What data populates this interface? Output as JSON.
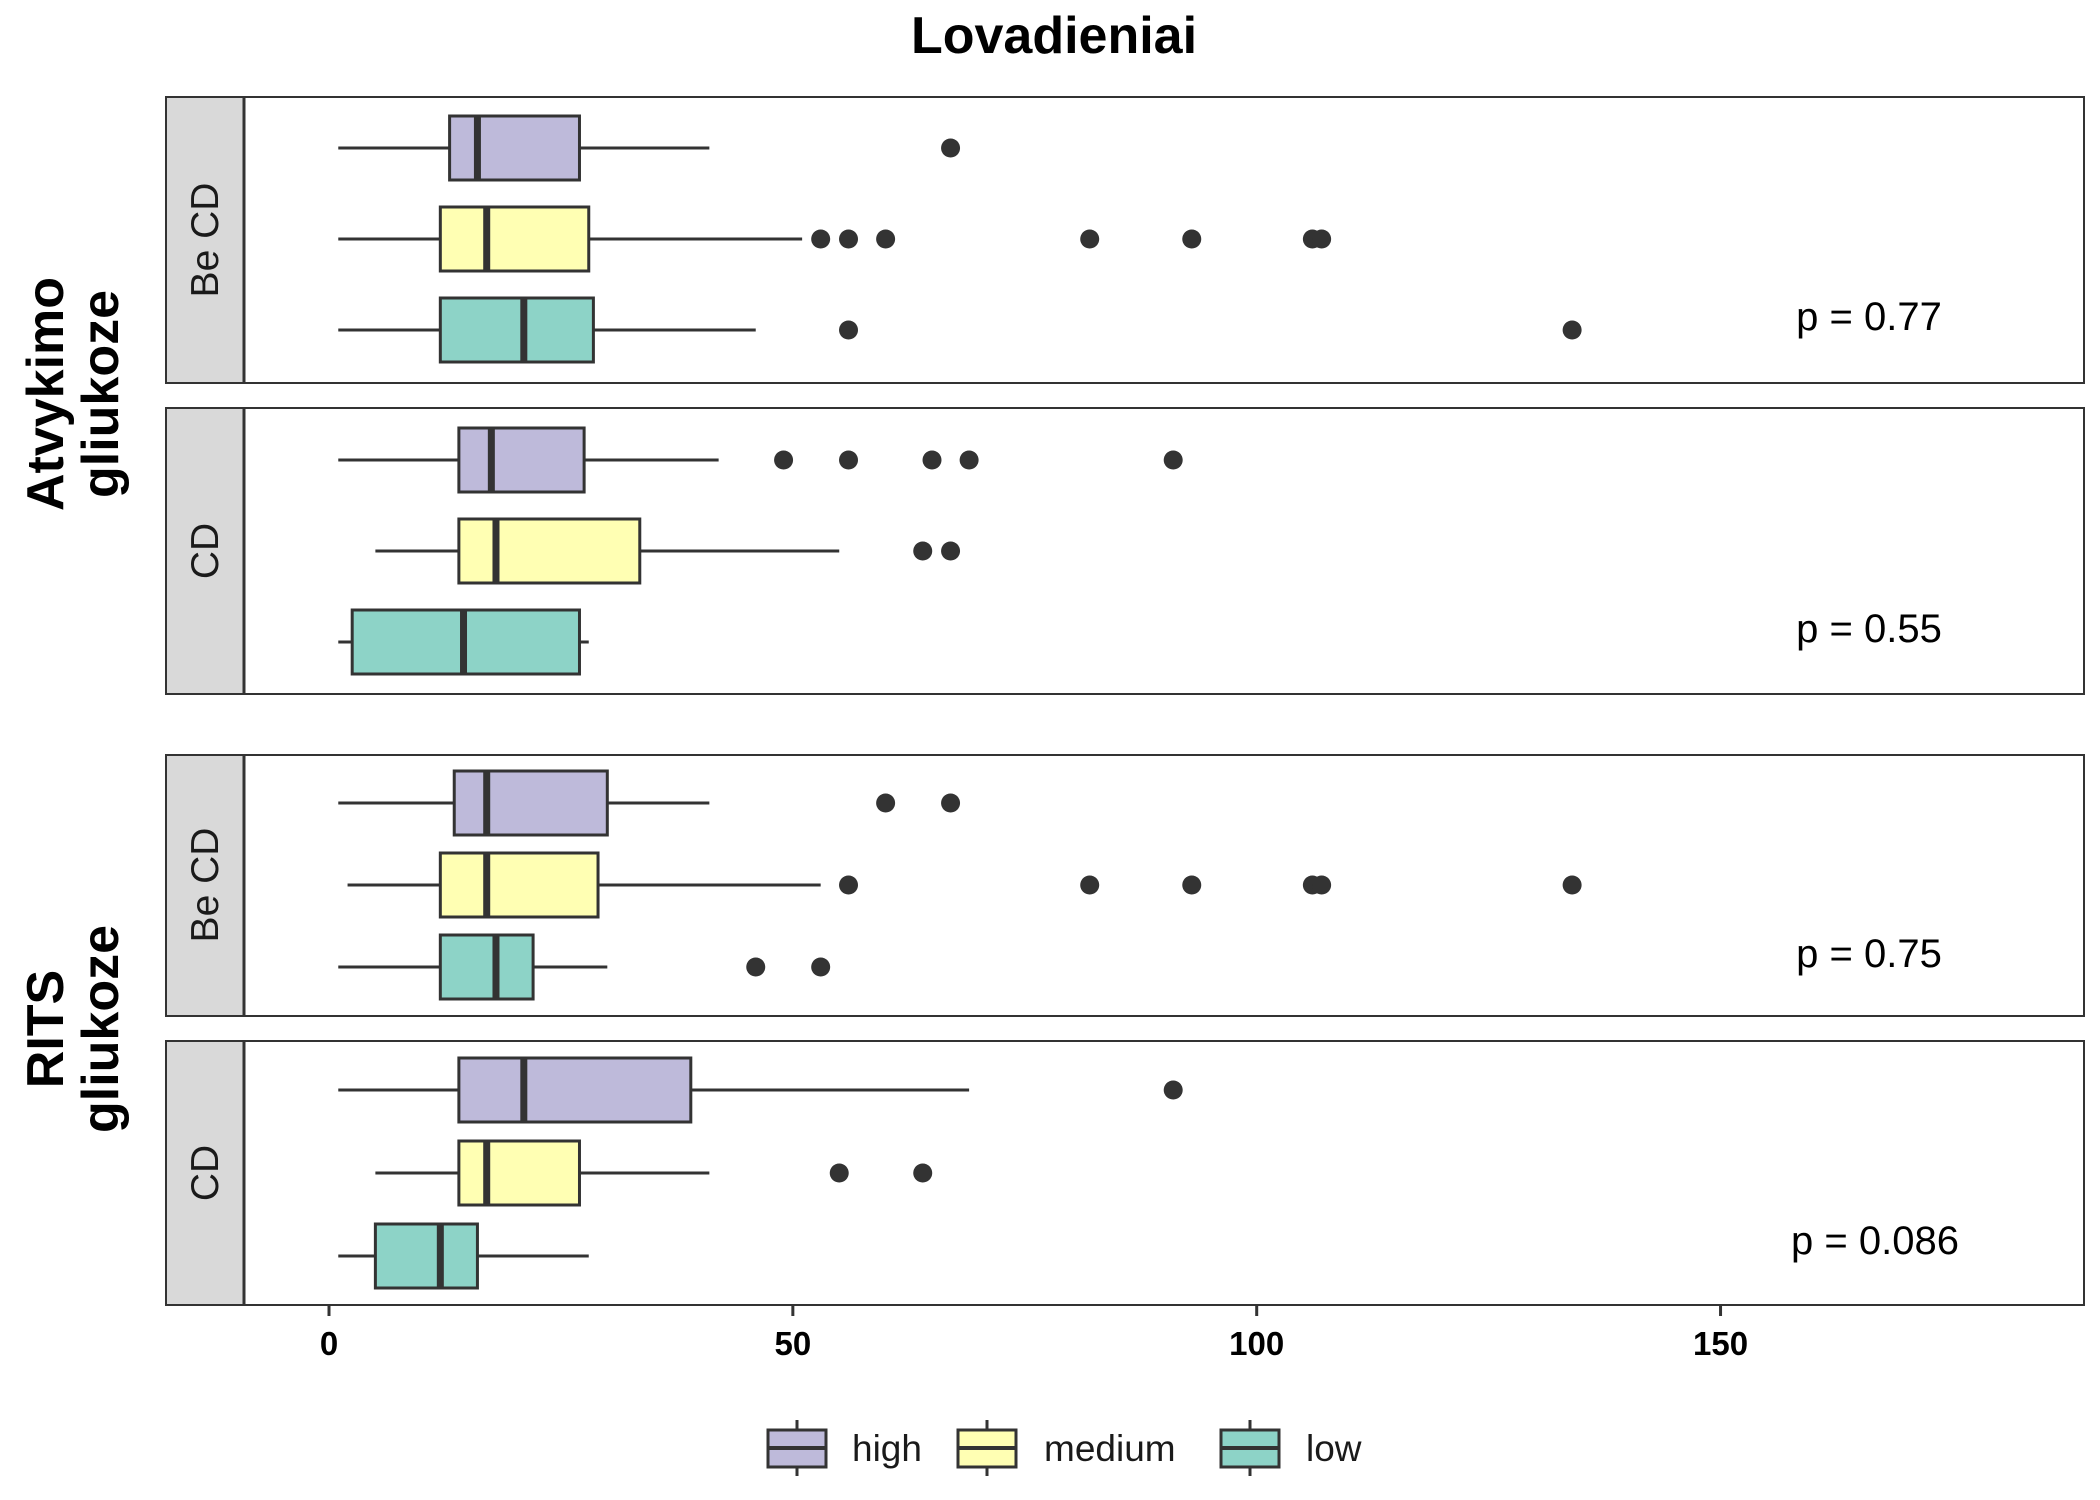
{
  "chart_data": {
    "type": "boxplot",
    "orientation": "horizontal",
    "title": "Lovadieniai",
    "xlim": [
      -17.5,
      189
    ],
    "x_ticks": [
      "0",
      "50",
      "100",
      "150"
    ],
    "x_tick_values": [
      0,
      50,
      100,
      150
    ],
    "legend": {
      "position": "bottom",
      "entries": [
        {
          "name": "high",
          "color": "#bebada"
        },
        {
          "name": "medium",
          "color": "#ffffb3"
        },
        {
          "name": "low",
          "color": "#8dd3c7"
        }
      ]
    },
    "groups": [
      {
        "label_lines": [
          "Atvykimo",
          "gliukoze"
        ],
        "panels": [
          {
            "strip": "Be CD",
            "p_value": "p = 0.77",
            "series": [
              {
                "name": "high",
                "whisker_low": 1,
                "q1": 13,
                "median": 16,
                "q3": 27,
                "whisker_high": 41,
                "outliers": [
                  67
                ]
              },
              {
                "name": "medium",
                "whisker_low": 1,
                "q1": 12,
                "median": 17,
                "q3": 28,
                "whisker_high": 51,
                "outliers": [
                  53,
                  56,
                  60,
                  82,
                  93,
                  106,
                  107
                ]
              },
              {
                "name": "low",
                "whisker_low": 1,
                "q1": 12,
                "median": 21,
                "q3": 28.5,
                "whisker_high": 46,
                "outliers": [
                  56,
                  134
                ]
              }
            ]
          },
          {
            "strip": "CD",
            "p_value": "p = 0.55",
            "series": [
              {
                "name": "high",
                "whisker_low": 1,
                "q1": 14,
                "median": 17.5,
                "q3": 27.5,
                "whisker_high": 42,
                "outliers": [
                  49,
                  56,
                  65,
                  69,
                  91
                ]
              },
              {
                "name": "medium",
                "whisker_low": 5,
                "q1": 14,
                "median": 18,
                "q3": 33.5,
                "whisker_high": 55,
                "outliers": [
                  64,
                  67
                ]
              },
              {
                "name": "low",
                "whisker_low": 1,
                "q1": 2.5,
                "median": 14.5,
                "q3": 27,
                "whisker_high": 28,
                "outliers": []
              }
            ]
          }
        ]
      },
      {
        "label_lines": [
          "RITS",
          "gliukoze"
        ],
        "panels": [
          {
            "strip": "Be CD",
            "p_value": "p = 0.75",
            "series": [
              {
                "name": "high",
                "whisker_low": 1,
                "q1": 13.5,
                "median": 17,
                "q3": 30,
                "whisker_high": 41,
                "outliers": [
                  60,
                  67
                ]
              },
              {
                "name": "medium",
                "whisker_low": 2,
                "q1": 12,
                "median": 17,
                "q3": 29,
                "whisker_high": 53,
                "outliers": [
                  56,
                  82,
                  93,
                  106,
                  107,
                  134
                ]
              },
              {
                "name": "low",
                "whisker_low": 1,
                "q1": 12,
                "median": 18,
                "q3": 22,
                "whisker_high": 30,
                "outliers": [
                  46,
                  53
                ]
              }
            ]
          },
          {
            "strip": "CD",
            "p_value": "p = 0.086",
            "series": [
              {
                "name": "high",
                "whisker_low": 1,
                "q1": 14,
                "median": 21,
                "q3": 39,
                "whisker_high": 69,
                "outliers": [
                  91
                ]
              },
              {
                "name": "medium",
                "whisker_low": 5,
                "q1": 14,
                "median": 17,
                "q3": 27,
                "whisker_high": 41,
                "outliers": [
                  55,
                  64
                ]
              },
              {
                "name": "low",
                "whisker_low": 1,
                "q1": 5,
                "median": 12,
                "q3": 16,
                "whisker_high": 28,
                "outliers": []
              }
            ]
          }
        ]
      }
    ]
  }
}
